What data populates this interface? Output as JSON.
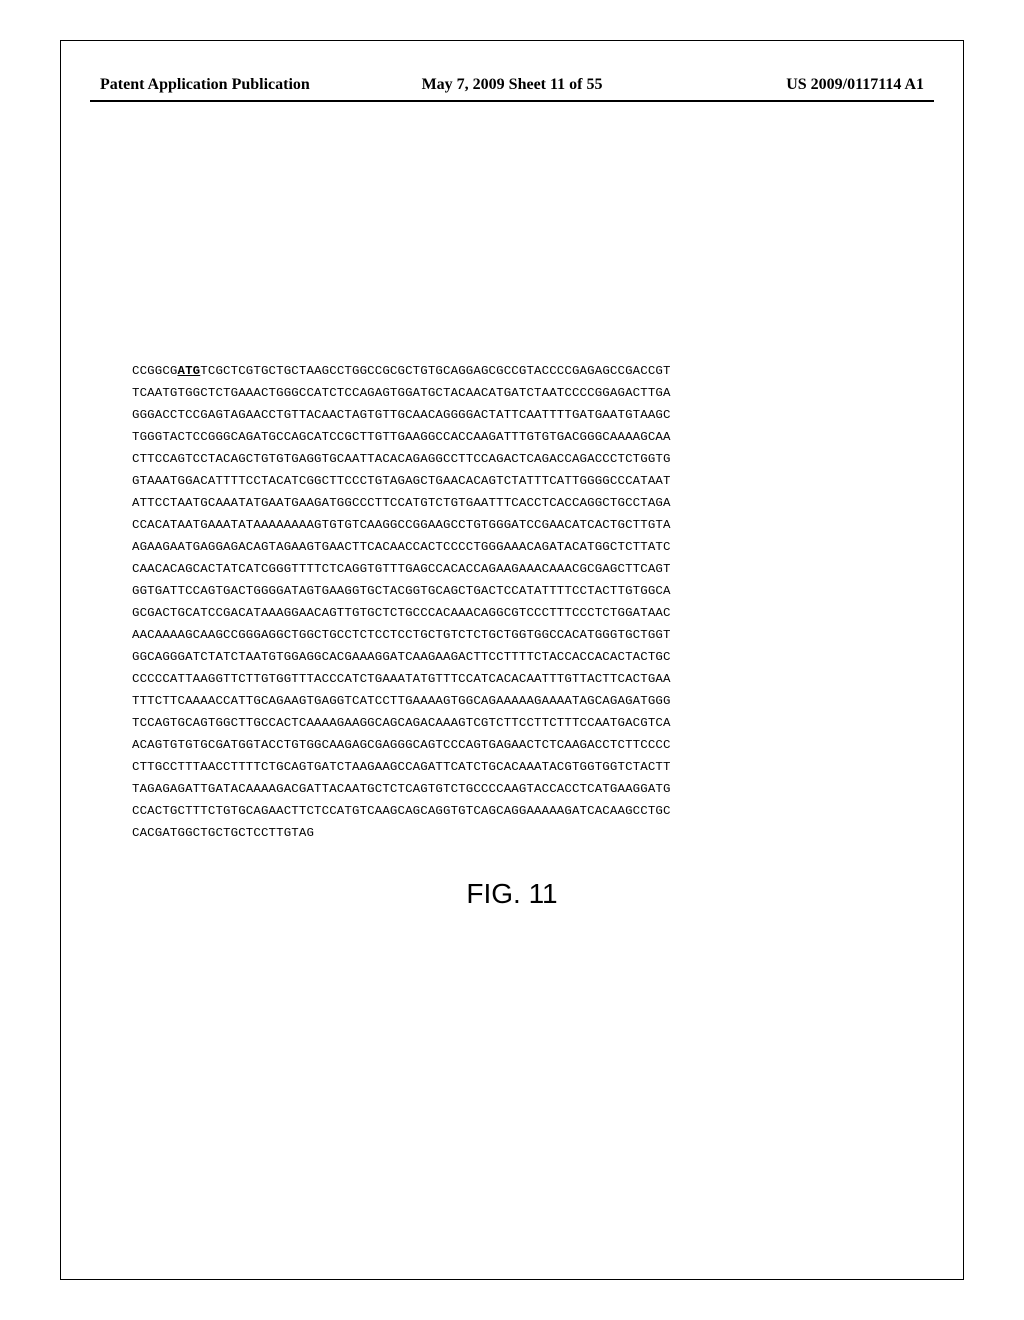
{
  "header": {
    "left": "Patent Application Publication",
    "center": "May 7, 2009  Sheet 11 of 55",
    "right": "US 2009/0117114 A1"
  },
  "sequence": {
    "prefix": "CCGGCG",
    "start_codon": "ATG",
    "lines": [
      "TCGCTCGTGCTGCTAAGCCTGGCCGCGCTGTGCAGGAGCGCCGTACCCCGAGAGCCGACCGT",
      "TCAATGTGGCTCTGAAACTGGGCCATCTCCAGAGTGGATGCTACAACATGATCTAATCCCCGGAGACTTGA",
      "GGGACCTCCGAGTAGAACCTGTTACAACTAGTGTTGCAACAGGGGACTATTCAATTTTGATGAATGTAAGC",
      "TGGGTACTCCGGGCAGATGCCAGCATCCGCTTGTTGAAGGCCACCAAGATTTGTGTGACGGGCAAAAGCAA",
      "CTTCCAGTCCTACAGCTGTGTGAGGTGCAATTACACAGAGGCCTTCCAGACTCAGACCAGACCCTCTGGTG",
      "GTAAATGGACATTTTCCTACATCGGCTTCCCTGTAGAGCTGAACACAGTCTATTTCATTGGGGCCCATAAT",
      "ATTCCTAATGCAAATATGAATGAAGATGGCCCTTCCATGTCTGTGAATTTCACCTCACCAGGCTGCCTAGA",
      "CCACATAATGAAATATAAAAAAAAGTGTGTCAAGGCCGGAAGCCTGTGGGATCCGAACATCACTGCTTGTA",
      "AGAAGAATGAGGAGACAGTAGAAGTGAACTTCACAACCACTCCCCTGGGAAACAGATACATGGCTCTTATC",
      "CAACACAGCACTATCATCGGGTTTTCTCAGGTGTTTGAGCCACACCAGAAGAAACAAACGCGAGCTTCAGT",
      "GGTGATTCCAGTGACTGGGGATAGTGAAGGTGCTACGGTGCAGCTGACTCCATATTTTCCTACTTGTGGCA",
      "GCGACTGCATCCGACATAAAGGAACAGTTGTGCTCTGCCCACAAACAGGCGTCCCTTTCCCTCTGGATAAC",
      "AACAAAAGCAAGCCGGGAGGCTGGCTGCCTCTCCTCCTGCTGTCTCTGCTGGTGGCCACATGGGTGCTGGT",
      "GGCAGGGATCTATCTAATGTGGAGGCACGAAAGGATCAAGAAGACTTCCTTTTCTACCACCACACTACTGC",
      "CCCCCATTAAGGTTCTTGTGGTTTACCCATCTGAAATATGTTTCCATCACACAATTTGTTACTTCACTGAA",
      "TTTCTTCAAAACCATTGCAGAAGTGAGGTCATCCTTGAAAAGTGGCAGAAAAAGAAAATAGCAGAGATGGG",
      "TCCAGTGCAGTGGCTTGCCACTCAAAAGAAGGCAGCAGACAAAGTCGTCTTCCTTCTTTCCAATGACGTCA",
      "ACAGTGTGTGCGATGGTACCTGTGGCAAGAGCGAGGGCAGTCCCAGTGAGAACTCTCAAGACCTCTTCCCC",
      "CTTGCCTTTAACCTTTTCTGCAGTGATCTAAGAAGCCAGATTCATCTGCACAAATACGTGGTGGTCTACTT",
      "TAGAGAGATTGATACAAAAGACGATTACAATGCTCTCAGTGTCTGCCCCAAGTACCACCTCATGAAGGATG",
      "CCACTGCTTTCTGTGCAGAACTTCTCCATGTCAAGCAGCAGGTGTCAGCAGGAAAAAGATCACAAGCCTGC",
      "CACGATGGCTGCTGCTCCTTGTAG"
    ]
  },
  "figure_label": "FIG. 11",
  "style": {
    "background": "#ffffff",
    "text_color": "#000000",
    "border_color": "#000000",
    "header_fontsize": 16,
    "sequence_fontsize": 12.4,
    "sequence_lineheight": 22,
    "figure_fontsize": 28
  }
}
